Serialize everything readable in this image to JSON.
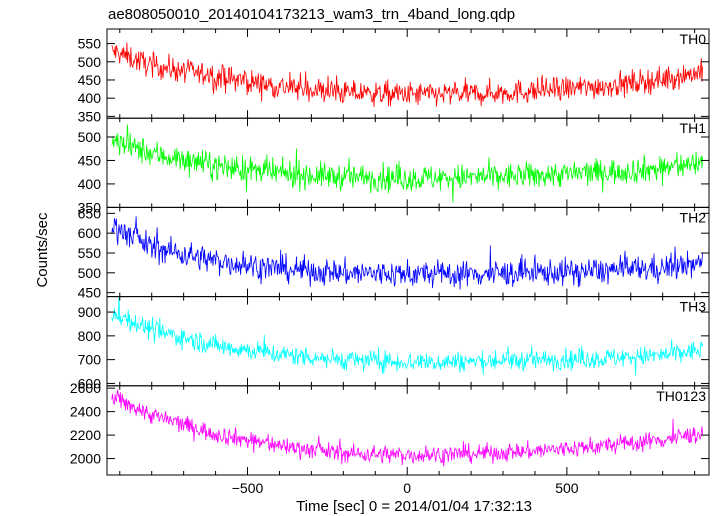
{
  "title": "ae808050010_20140104173213_wam3_trn_4band_long.qdp",
  "xlabel": "Time [sec] 0 = 2014/01/04 17:32:13",
  "ylabel": "Counts/sec",
  "chart_data": {
    "type": "line",
    "title": "ae808050010_20140104173213_wam3_trn_4band_long.qdp",
    "xlabel": "Time [sec] 0 = 2014/01/04 17:32:13",
    "ylabel": "Counts/sec",
    "xlim": [
      -940,
      945
    ],
    "x_ticks": [
      -500,
      0,
      500
    ],
    "x_tick_labels": [
      "−500",
      "0",
      "500"
    ],
    "grid": false,
    "panels": [
      {
        "name": "TH0",
        "color": "#ff0000",
        "ylim": [
          345,
          590
        ],
        "y_ticks": [
          350,
          400,
          450,
          500,
          550
        ],
        "trend_x": [
          -920,
          -800,
          -600,
          -400,
          -200,
          0,
          200,
          400,
          600,
          800,
          920
        ],
        "trend_y": [
          528,
          490,
          460,
          432,
          415,
          410,
          412,
          420,
          432,
          452,
          472
        ],
        "noise": 24
      },
      {
        "name": "TH1",
        "color": "#00ff00",
        "ylim": [
          350,
          540
        ],
        "y_ticks": [
          350,
          400,
          450,
          500
        ],
        "trend_x": [
          -920,
          -800,
          -600,
          -400,
          -200,
          0,
          200,
          400,
          600,
          800,
          920
        ],
        "trend_y": [
          490,
          465,
          438,
          422,
          415,
          412,
          414,
          418,
          425,
          433,
          445
        ],
        "noise": 20
      },
      {
        "name": "TH2",
        "color": "#0000ff",
        "ylim": [
          440,
          665
        ],
        "y_ticks": [
          450,
          500,
          550,
          600,
          650
        ],
        "trend_x": [
          -920,
          -800,
          -600,
          -400,
          -200,
          0,
          200,
          400,
          600,
          800,
          920
        ],
        "trend_y": [
          620,
          565,
          530,
          510,
          500,
          497,
          497,
          500,
          505,
          512,
          522
        ],
        "noise": 24
      },
      {
        "name": "TH3",
        "color": "#00ffff",
        "ylim": [
          590,
          965
        ],
        "y_ticks": [
          600,
          700,
          800,
          900
        ],
        "trend_x": [
          -920,
          -800,
          -600,
          -400,
          -200,
          0,
          200,
          400,
          600,
          800,
          920
        ],
        "trend_y": [
          895,
          825,
          760,
          722,
          700,
          690,
          692,
          698,
          705,
          718,
          740
        ],
        "noise": 30
      },
      {
        "name": "TH0123",
        "color": "#ff00ff",
        "ylim": [
          1860,
          2620
        ],
        "y_ticks": [
          2000,
          2200,
          2400,
          2600
        ],
        "trend_x": [
          -920,
          -800,
          -600,
          -400,
          -200,
          0,
          200,
          400,
          600,
          800,
          920
        ],
        "trend_y": [
          2520,
          2370,
          2210,
          2110,
          2045,
          2030,
          2040,
          2065,
          2105,
          2160,
          2215
        ],
        "noise": 55
      }
    ]
  }
}
